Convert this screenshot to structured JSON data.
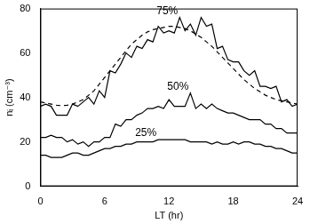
{
  "chart_data": {
    "type": "line",
    "x_label": "LT (hr)",
    "y_label": "nᵢ (cm⁻³)",
    "x": [
      0,
      0.5,
      1,
      1.5,
      2,
      2.5,
      3,
      3.5,
      4,
      4.5,
      5,
      5.5,
      6,
      6.5,
      7,
      7.5,
      8,
      8.5,
      9,
      9.5,
      10,
      10.5,
      11,
      11.5,
      12,
      12.5,
      13,
      13.5,
      14,
      14.5,
      15,
      15.5,
      16,
      16.5,
      17,
      17.5,
      18,
      18.5,
      19,
      19.5,
      20,
      20.5,
      21,
      21.5,
      22,
      22.5,
      23,
      23.5,
      24
    ],
    "xlim": [
      0,
      24
    ],
    "xticks": [
      0,
      6,
      12,
      18,
      24
    ],
    "ylim": [
      0,
      80
    ],
    "yticks": [
      0,
      20,
      40,
      60,
      80
    ],
    "grid": false,
    "series": [
      {
        "name": "75%",
        "color": "#000000",
        "line_style": "solid",
        "values": [
          36,
          37,
          36,
          32,
          32,
          32,
          37,
          36,
          38,
          40,
          37,
          43,
          40,
          52,
          51,
          55,
          60,
          58,
          63,
          62,
          66,
          65,
          72,
          69,
          70,
          69,
          76,
          70,
          73,
          68,
          76,
          72,
          73,
          62,
          63,
          57,
          56,
          56,
          52,
          50,
          52,
          45,
          45,
          44,
          45,
          38,
          39,
          36,
          37
        ]
      },
      {
        "name": "50%",
        "color": "#000000",
        "line_style": "solid",
        "values": [
          22,
          22,
          23,
          22,
          22,
          20,
          21,
          19,
          20,
          18,
          20,
          20,
          22,
          22,
          28,
          27,
          30,
          30,
          32,
          33,
          35,
          35,
          36,
          35,
          39,
          36,
          36,
          36,
          42,
          35,
          37,
          35,
          37,
          35,
          34,
          33,
          33,
          32,
          31,
          30,
          30,
          30,
          28,
          28,
          26,
          26,
          24,
          24,
          24
        ]
      },
      {
        "name": "25%",
        "color": "#000000",
        "line_style": "solid",
        "values": [
          14,
          14,
          13,
          13,
          13,
          14,
          15,
          15,
          14,
          14,
          15,
          16,
          17,
          17,
          18,
          18,
          19,
          19,
          20,
          20,
          20,
          20,
          21,
          21,
          21,
          21,
          21,
          21,
          20,
          20,
          20,
          20,
          19,
          20,
          19,
          19,
          20,
          19,
          20,
          20,
          19,
          19,
          18,
          18,
          17,
          17,
          16,
          15,
          15
        ]
      },
      {
        "color": "#000000",
        "line_style": "dashed",
        "values": [
          38,
          37.5,
          37,
          36.5,
          36.3,
          36.5,
          37,
          38,
          39,
          41,
          43,
          46,
          49,
          52,
          55,
          58,
          61,
          64,
          66,
          68,
          69.5,
          70.5,
          71,
          71.5,
          72,
          72,
          71.5,
          71,
          70,
          68.5,
          67,
          65,
          63,
          60.5,
          58,
          55.5,
          53,
          50.5,
          48,
          46,
          44,
          42.5,
          41,
          40,
          39,
          38.5,
          38,
          37.5,
          37
        ]
      }
    ]
  }
}
